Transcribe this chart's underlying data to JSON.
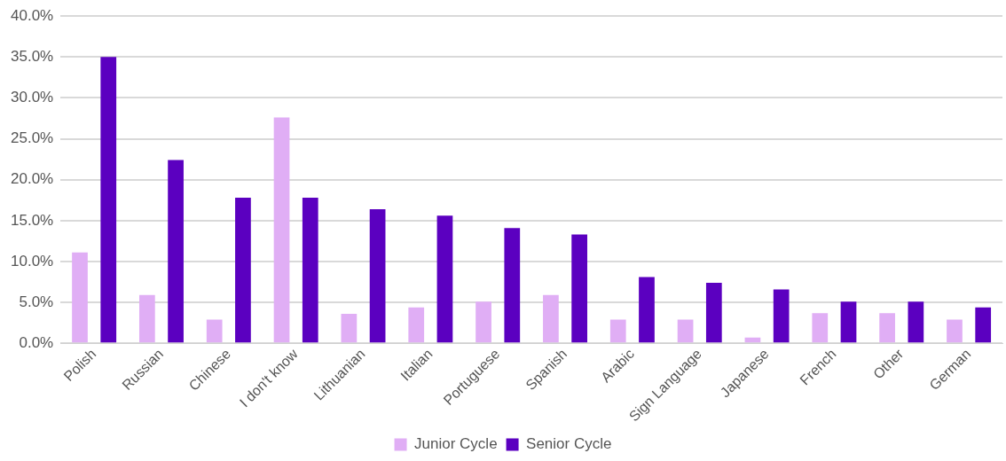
{
  "chart_data": {
    "type": "bar",
    "categories": [
      "Polish",
      "Russian",
      "Chinese",
      "I don't know",
      "Lithuanian",
      "Italian",
      "Portuguese",
      "Spanish",
      "Arabic",
      "Sign Language",
      "Japanese",
      "French",
      "Other",
      "German"
    ],
    "series": [
      {
        "name": "Junior Cycle",
        "color": "#e0aef5",
        "values": [
          11.1,
          5.9,
          2.9,
          27.6,
          3.6,
          4.4,
          5.1,
          5.9,
          2.9,
          2.9,
          0.7,
          3.7,
          3.7,
          2.9
        ]
      },
      {
        "name": "Senior Cycle",
        "color": "#5b00c0",
        "values": [
          35.0,
          22.4,
          17.8,
          17.8,
          16.4,
          15.6,
          14.1,
          13.3,
          8.1,
          7.4,
          6.6,
          5.1,
          5.1,
          4.4
        ]
      }
    ],
    "ylim": [
      0,
      40
    ],
    "yticks": [
      {
        "value": 0,
        "label": "0.0%"
      },
      {
        "value": 5,
        "label": "5.0%"
      },
      {
        "value": 10,
        "label": "10.0%"
      },
      {
        "value": 15,
        "label": "15.0%"
      },
      {
        "value": 20,
        "label": "20.0%"
      },
      {
        "value": 25,
        "label": "25.0%"
      },
      {
        "value": 30,
        "label": "30.0%"
      },
      {
        "value": 35,
        "label": "35.0%"
      },
      {
        "value": 40,
        "label": "40.0%"
      }
    ],
    "grid": "y",
    "legend": "bottom"
  }
}
